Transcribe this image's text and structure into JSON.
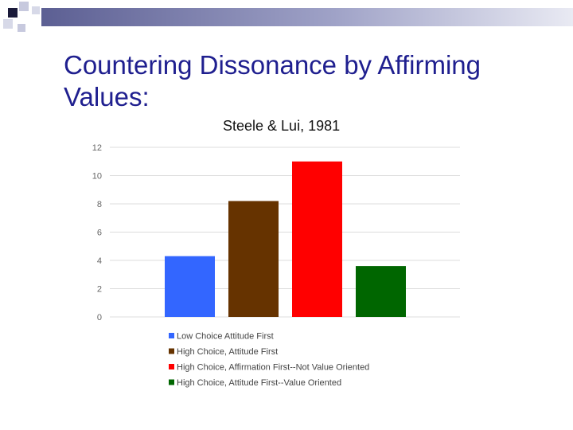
{
  "slide": {
    "title": "Countering Dissonance by Affirming Values:",
    "subtitle": "Steele & Lui, 1981"
  },
  "colors": {
    "title": "#1f1f8f",
    "title_bar_start": "#5c5f93",
    "grid": "#dddddd",
    "tick_label": "#666666"
  },
  "chart_data": {
    "type": "bar",
    "title": "",
    "xlabel": "",
    "ylabel": "",
    "ylim": [
      0,
      12
    ],
    "yticks": [
      0,
      2,
      4,
      6,
      8,
      10,
      12
    ],
    "grid": true,
    "legend_position": "bottom",
    "series": [
      {
        "name": "Low Choice Attitude First",
        "value": 4.3,
        "color": "#3366ff"
      },
      {
        "name": "High Choice, Attitude First",
        "value": 8.2,
        "color": "#663300"
      },
      {
        "name": "High Choice, Affirmation First--Not Value Oriented",
        "value": 11.0,
        "color": "#ff0000"
      },
      {
        "name": "High Choice, Attitude First--Value Oriented",
        "value": 3.6,
        "color": "#006600"
      }
    ]
  }
}
